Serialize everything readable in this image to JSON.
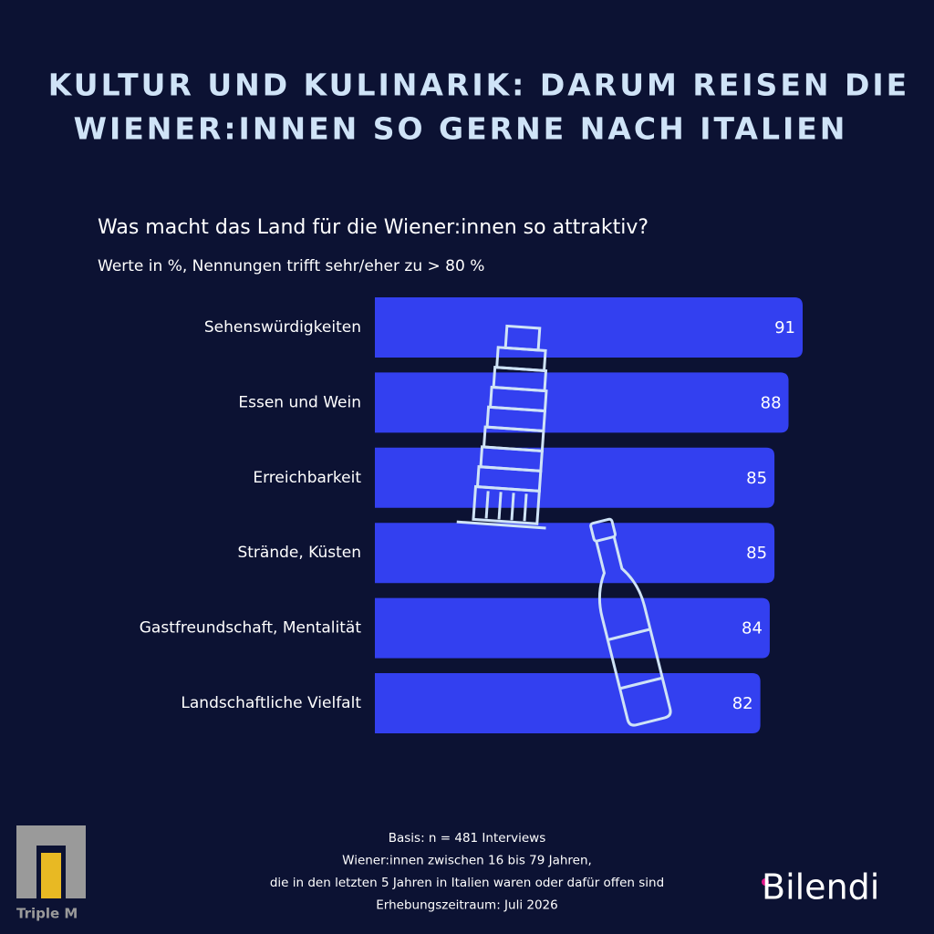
{
  "chart_data": {
    "type": "bar",
    "orientation": "horizontal",
    "title": [
      "KULTUR UND KULINARIK: DARUM REISEN DIE",
      "WIENER:INNEN SO GERNE NACH ITALIEN"
    ],
    "subtitle": "Was macht das Land für die Wiener:innen so attraktiv?",
    "note": "Werte in %, Nennungen trifft sehr/eher zu > 80 %",
    "categories": [
      "Sehenswürdigkeiten",
      "Essen und Wein",
      "Erreichbarkeit",
      "Strände, Küsten",
      "Gastfreundschaft, Mentalität",
      "Landschaftliche Vielfalt"
    ],
    "values": [
      91,
      88,
      85,
      85,
      84,
      82
    ],
    "color": "#3340f0",
    "footnote": [
      "Basis: n = 481 Interviews",
      "Wiener:innen zwischen 16 bis 79 Jahren,",
      "die in den letzten 5 Jahren in Italien waren oder dafür offen sind",
      "Erhebungszeitraum: Juli 2026"
    ]
  },
  "logos": [
    "Triple M",
    "Bilendi"
  ]
}
